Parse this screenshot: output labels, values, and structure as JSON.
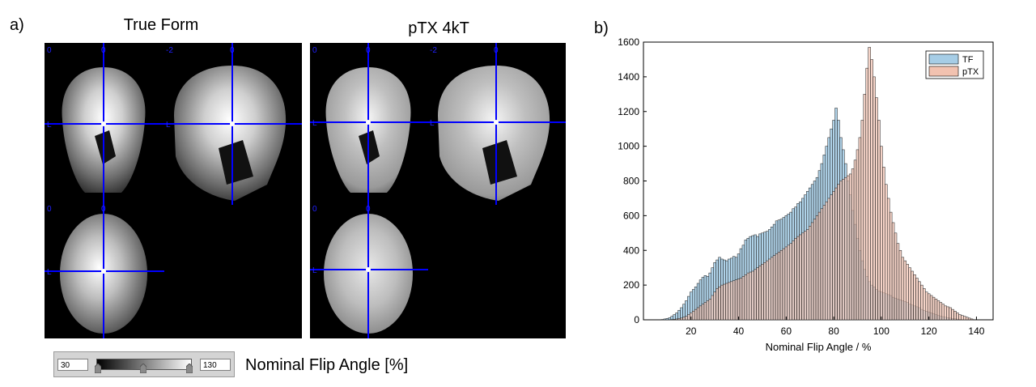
{
  "panel_a": {
    "label": "a)",
    "columns": [
      {
        "title": "True Form",
        "views": {
          "coronal": {
            "tick_labels": [
              "0",
              "0"
            ]
          },
          "sagittal": {
            "tick_labels": [
              "-2",
              "0"
            ]
          },
          "axial": {
            "tick_labels": [
              "0",
              "0"
            ]
          }
        },
        "cross_labels": [
          "L",
          "L",
          "L"
        ]
      },
      {
        "title": "pTX 4kT",
        "views": {
          "coronal": {
            "tick_labels": [
              "0",
              "0"
            ]
          },
          "sagittal": {
            "tick_labels": [
              "-2",
              "0"
            ]
          },
          "axial": {
            "tick_labels": [
              "0",
              "0"
            ]
          }
        },
        "cross_labels": [
          "L",
          "L",
          "L"
        ]
      }
    ],
    "crosshair_color": "#0000ff",
    "colorbar": {
      "min_value": "30",
      "max_value": "130",
      "label": "Nominal Flip Angle [%]"
    }
  },
  "panel_b": {
    "label": "b)"
  },
  "chart_data": {
    "type": "bar",
    "title": "",
    "xlabel": "Nominal Flip Angle / %",
    "ylabel": "",
    "xlim": [
      0,
      147
    ],
    "ylim": [
      0,
      1600
    ],
    "xticks": [
      20,
      40,
      60,
      80,
      100,
      120,
      140
    ],
    "yticks": [
      0,
      200,
      400,
      600,
      800,
      1000,
      1200,
      1400,
      1600
    ],
    "legend_position": "top-right",
    "bin_width": 1,
    "series": [
      {
        "name": "TF",
        "color": "#a6cde6",
        "x": [
          8,
          9,
          10,
          11,
          12,
          13,
          14,
          15,
          16,
          17,
          18,
          19,
          20,
          21,
          22,
          23,
          24,
          25,
          26,
          27,
          28,
          29,
          30,
          31,
          32,
          33,
          34,
          35,
          36,
          37,
          38,
          39,
          40,
          41,
          42,
          43,
          44,
          45,
          46,
          47,
          48,
          49,
          50,
          51,
          52,
          53,
          54,
          55,
          56,
          57,
          58,
          59,
          60,
          61,
          62,
          63,
          64,
          65,
          66,
          67,
          68,
          69,
          70,
          71,
          72,
          73,
          74,
          75,
          76,
          77,
          78,
          79,
          80,
          81,
          82,
          83,
          84,
          85,
          86,
          87,
          88,
          89,
          90,
          91,
          92,
          93,
          94,
          95,
          96,
          97,
          98,
          99,
          100,
          101,
          102,
          103,
          104,
          105,
          106,
          107,
          108,
          109,
          110,
          111,
          112,
          113,
          114,
          115,
          116,
          117,
          118,
          119,
          120,
          121,
          122,
          123,
          124,
          125,
          126,
          127,
          128,
          129,
          130,
          131,
          132,
          133,
          134,
          135
        ],
        "values": [
          2,
          5,
          8,
          12,
          20,
          30,
          40,
          55,
          70,
          90,
          110,
          135,
          160,
          175,
          190,
          210,
          230,
          245,
          255,
          250,
          270,
          300,
          330,
          345,
          360,
          350,
          345,
          340,
          350,
          355,
          365,
          360,
          380,
          410,
          430,
          460,
          470,
          480,
          485,
          490,
          480,
          495,
          500,
          505,
          510,
          520,
          535,
          550,
          570,
          575,
          580,
          590,
          600,
          610,
          620,
          640,
          650,
          670,
          680,
          700,
          720,
          740,
          760,
          780,
          800,
          820,
          860,
          900,
          950,
          1000,
          1050,
          1100,
          1150,
          1220,
          1150,
          1050,
          980,
          900,
          800,
          720,
          630,
          550,
          470,
          400,
          340,
          290,
          250,
          220,
          200,
          190,
          175,
          165,
          160,
          155,
          150,
          145,
          140,
          130,
          125,
          120,
          115,
          110,
          105,
          100,
          90,
          85,
          80,
          75,
          70,
          60,
          55,
          50,
          45,
          40,
          35,
          30,
          25,
          20,
          18,
          15,
          12,
          10,
          8,
          6,
          4,
          3,
          2,
          1
        ]
      },
      {
        "name": "pTX",
        "color": "#f2c2b0",
        "x": [
          8,
          9,
          10,
          11,
          12,
          13,
          14,
          15,
          16,
          17,
          18,
          19,
          20,
          21,
          22,
          23,
          24,
          25,
          26,
          27,
          28,
          29,
          30,
          31,
          32,
          33,
          34,
          35,
          36,
          37,
          38,
          39,
          40,
          41,
          42,
          43,
          44,
          45,
          46,
          47,
          48,
          49,
          50,
          51,
          52,
          53,
          54,
          55,
          56,
          57,
          58,
          59,
          60,
          61,
          62,
          63,
          64,
          65,
          66,
          67,
          68,
          69,
          70,
          71,
          72,
          73,
          74,
          75,
          76,
          77,
          78,
          79,
          80,
          81,
          82,
          83,
          84,
          85,
          86,
          87,
          88,
          89,
          90,
          91,
          92,
          93,
          94,
          95,
          96,
          97,
          98,
          99,
          100,
          101,
          102,
          103,
          104,
          105,
          106,
          107,
          108,
          109,
          110,
          111,
          112,
          113,
          114,
          115,
          116,
          117,
          118,
          119,
          120,
          121,
          122,
          123,
          124,
          125,
          126,
          127,
          128,
          129,
          130,
          131,
          132,
          133,
          134,
          135,
          136,
          137,
          138
        ],
        "values": [
          0,
          0,
          0,
          1,
          2,
          3,
          5,
          8,
          10,
          15,
          20,
          30,
          40,
          50,
          60,
          70,
          80,
          90,
          100,
          110,
          120,
          140,
          160,
          180,
          190,
          200,
          205,
          210,
          215,
          220,
          225,
          230,
          235,
          240,
          250,
          260,
          270,
          275,
          280,
          290,
          300,
          310,
          320,
          330,
          340,
          350,
          360,
          370,
          380,
          390,
          400,
          410,
          420,
          430,
          440,
          455,
          470,
          480,
          490,
          500,
          510,
          520,
          540,
          560,
          580,
          600,
          620,
          640,
          660,
          680,
          700,
          720,
          740,
          760,
          780,
          800,
          810,
          820,
          830,
          840,
          870,
          920,
          980,
          1050,
          1150,
          1300,
          1450,
          1570,
          1500,
          1400,
          1280,
          1150,
          1000,
          880,
          780,
          700,
          620,
          560,
          500,
          440,
          400,
          360,
          340,
          320,
          300,
          280,
          260,
          240,
          220,
          200,
          180,
          160,
          150,
          140,
          130,
          120,
          110,
          100,
          90,
          80,
          75,
          70,
          60,
          50,
          40,
          30,
          25,
          20,
          15,
          10,
          5
        ]
      }
    ]
  }
}
